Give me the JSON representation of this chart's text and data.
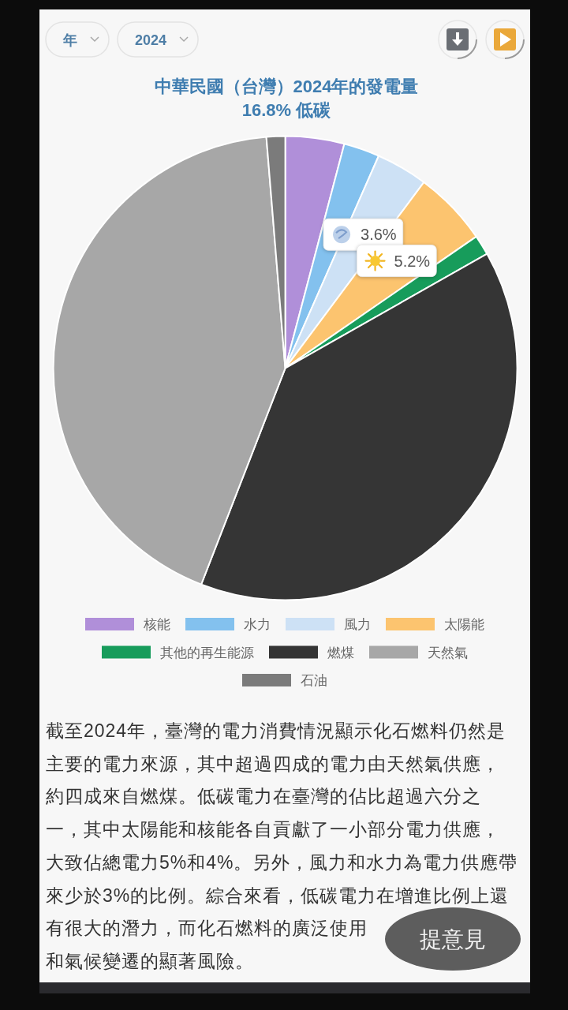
{
  "chart_data": {
    "type": "pie",
    "title": "中華民國（台灣）2024年的發電量",
    "subtitle": "16.8% 低碳",
    "categories": [
      "核能",
      "水力",
      "風力",
      "太陽能",
      "其他的再生能源",
      "燃煤",
      "天然氣",
      "石油"
    ],
    "values": [
      4.1,
      2.5,
      3.6,
      5.2,
      1.4,
      39.1,
      42.8,
      1.3
    ],
    "colors": [
      "#b08fd9",
      "#83c1ee",
      "#cde1f5",
      "#fcc46f",
      "#179c5b",
      "#353535",
      "#a7a7a7",
      "#7b7b7b"
    ],
    "value_labels": [
      null,
      null,
      "3.6%",
      "5.2%",
      null,
      null,
      null,
      null
    ],
    "legend": "bottom",
    "annotations": [
      "年",
      "2024",
      "截至2024年，臺灣的電力消費情況顯示化石燃料仍然是",
      "主要的電力來源，其中超過四成的電力由天然氣供應，",
      "約四成來自燃煤。低碳電力在臺灣的佔比超過六分之",
      "一，其中太陽能和核能各自貢獻了一小部分電力供應，",
      "大致佔總電力5%和4%。另外，風力和水力為電力供應帶",
      "來少於3%的比例。綜合來看，低碳電力在增進比例上還",
      "有很大的潛力，而化石燃料的廣泛使用",
      "和氣候變遷的顯著風險。",
      "提意見"
    ]
  }
}
